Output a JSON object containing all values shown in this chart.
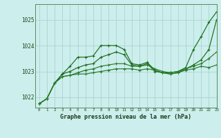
{
  "title": "Graphe pression niveau de la mer (hPa)",
  "bg_color": "#cceeed",
  "grid_color": "#aad4d0",
  "line_color_dark": "#1a6b1a",
  "line_color_mid": "#2a7a2a",
  "xlim": [
    -0.5,
    23
  ],
  "ylim": [
    1021.6,
    1025.6
  ],
  "yticks": [
    1022,
    1023,
    1024,
    1025
  ],
  "xticks": [
    0,
    1,
    2,
    3,
    4,
    5,
    6,
    7,
    8,
    9,
    10,
    11,
    12,
    13,
    14,
    15,
    16,
    17,
    18,
    19,
    20,
    21,
    22,
    23
  ],
  "series": [
    [
      1021.75,
      1021.95,
      1022.55,
      1022.9,
      1023.2,
      1023.55,
      1023.55,
      1023.6,
      1024.0,
      1024.0,
      1024.0,
      1023.85,
      1023.3,
      1023.25,
      1023.35,
      1023.05,
      1022.95,
      1022.95,
      1023.0,
      1023.15,
      1023.85,
      1024.35,
      1024.9,
      1025.3
    ],
    [
      1021.75,
      1021.95,
      1022.55,
      1022.9,
      1023.0,
      1023.15,
      1023.25,
      1023.3,
      1023.55,
      1023.65,
      1023.75,
      1023.65,
      1023.25,
      1023.2,
      1023.3,
      1023.0,
      1022.95,
      1022.9,
      1022.95,
      1023.1,
      1023.25,
      1023.45,
      1023.85,
      1025.0
    ],
    [
      1021.75,
      1021.95,
      1022.55,
      1022.8,
      1022.85,
      1022.9,
      1022.9,
      1022.95,
      1023.0,
      1023.05,
      1023.1,
      1023.1,
      1023.1,
      1023.05,
      1023.1,
      1023.05,
      1022.95,
      1022.9,
      1022.95,
      1023.05,
      1023.1,
      1023.2,
      1023.15,
      1023.25
    ],
    [
      1021.75,
      1021.95,
      1022.55,
      1022.8,
      1022.85,
      1022.95,
      1023.05,
      1023.1,
      1023.2,
      1023.25,
      1023.3,
      1023.3,
      1023.2,
      1023.2,
      1023.25,
      1023.1,
      1023.0,
      1022.95,
      1023.0,
      1023.1,
      1023.2,
      1023.3,
      1023.5,
      1023.75
    ]
  ]
}
